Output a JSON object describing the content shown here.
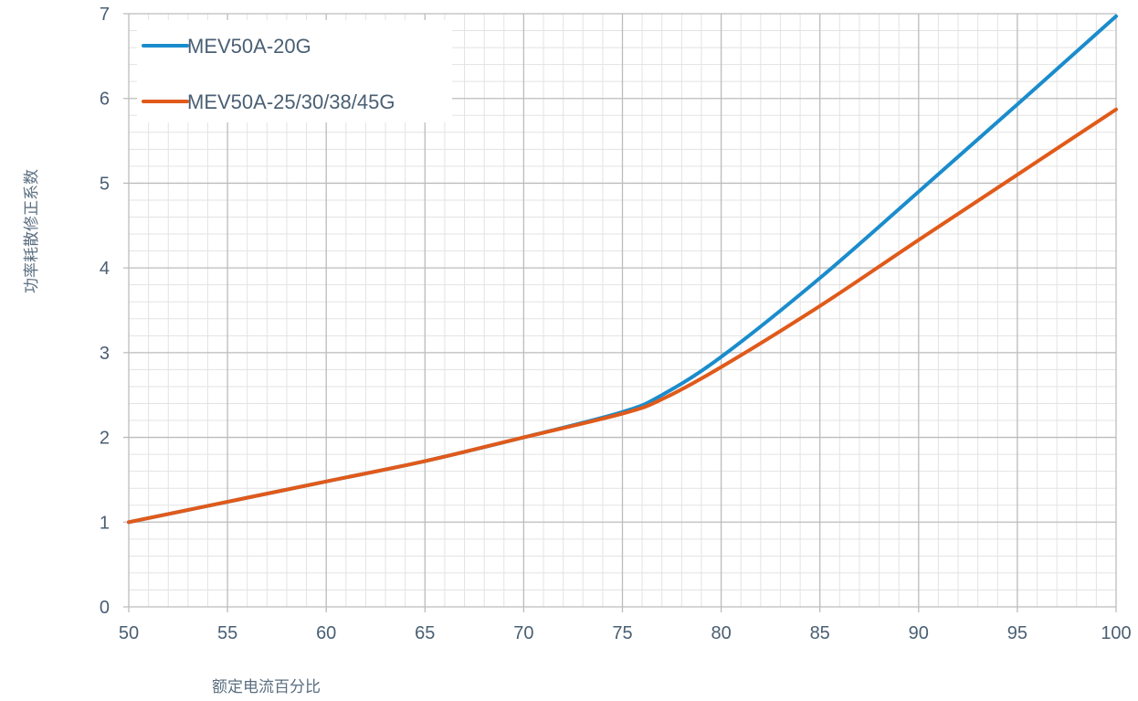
{
  "chart_data": {
    "type": "line",
    "xlabel": "额定电流百分比",
    "ylabel": "功率耗散修正系数",
    "xlim": [
      50,
      100
    ],
    "ylim": [
      0,
      7
    ],
    "xticks": [
      50,
      55,
      60,
      65,
      70,
      75,
      80,
      85,
      90,
      95,
      100
    ],
    "yticks": [
      0,
      1,
      2,
      3,
      4,
      5,
      6,
      7
    ],
    "grid": true,
    "legend_position": "top-left",
    "series": [
      {
        "name": "MEV50A-20G",
        "color": "#1a8ccc",
        "points": [
          [
            50,
            1.0
          ],
          [
            55,
            1.24
          ],
          [
            60,
            1.48
          ],
          [
            65,
            1.72
          ],
          [
            70,
            2.0
          ],
          [
            75,
            2.3
          ],
          [
            77,
            2.5
          ],
          [
            80,
            2.95
          ],
          [
            85,
            3.88
          ],
          [
            90,
            4.9
          ],
          [
            95,
            5.93
          ],
          [
            100,
            6.97
          ]
        ]
      },
      {
        "name": "MEV50A-25/30/38/45G",
        "color": "#e05a1a",
        "points": [
          [
            50,
            1.0
          ],
          [
            55,
            1.24
          ],
          [
            60,
            1.48
          ],
          [
            65,
            1.72
          ],
          [
            70,
            2.0
          ],
          [
            75,
            2.28
          ],
          [
            77,
            2.45
          ],
          [
            80,
            2.83
          ],
          [
            85,
            3.55
          ],
          [
            90,
            4.33
          ],
          [
            95,
            5.1
          ],
          [
            100,
            5.87
          ]
        ]
      }
    ]
  }
}
